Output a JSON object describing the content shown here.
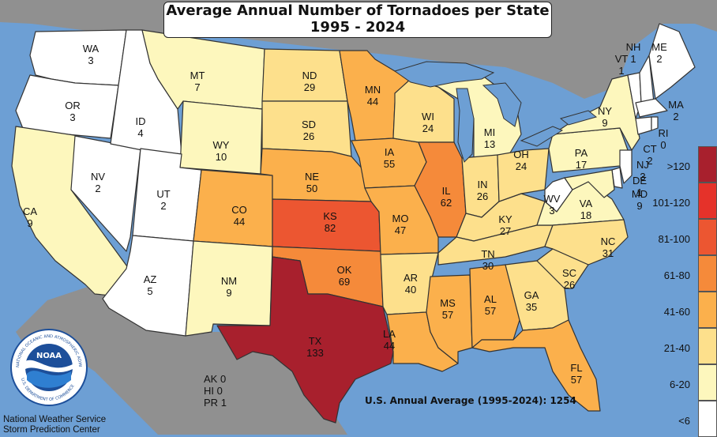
{
  "title": {
    "line1": "Average Annual Number of Tornadoes per State",
    "line2": "1995 - 2024"
  },
  "colors": {
    "lt6": "#ffffff",
    "b6_20": "#fdf7bd",
    "b21_40": "#fde08c",
    "b41_60": "#fbb04c",
    "b61_80": "#f58a3a",
    "b81_100": "#ec5631",
    "b101_120": "#e5322a",
    "gt120": "#a8202d",
    "water": "#6d9fd4",
    "land_other": "#909090",
    "border": "#333333"
  },
  "legend": [
    "<6",
    "6-20",
    "21-40",
    "41-60",
    "61-80",
    "81-100",
    "101-120",
    ">120"
  ],
  "states": [
    {
      "abbr": "WA",
      "value": "3"
    },
    {
      "abbr": "OR",
      "value": "3"
    },
    {
      "abbr": "CA",
      "value": "9"
    },
    {
      "abbr": "NV",
      "value": "2"
    },
    {
      "abbr": "ID",
      "value": "4"
    },
    {
      "abbr": "MT",
      "value": "7"
    },
    {
      "abbr": "WY",
      "value": "10"
    },
    {
      "abbr": "UT",
      "value": "2"
    },
    {
      "abbr": "AZ",
      "value": "5"
    },
    {
      "abbr": "CO",
      "value": "44"
    },
    {
      "abbr": "NM",
      "value": "9"
    },
    {
      "abbr": "ND",
      "value": "29"
    },
    {
      "abbr": "SD",
      "value": "26"
    },
    {
      "abbr": "NE",
      "value": "50"
    },
    {
      "abbr": "KS",
      "value": "82"
    },
    {
      "abbr": "OK",
      "value": "69"
    },
    {
      "abbr": "TX",
      "value": "133"
    },
    {
      "abbr": "MN",
      "value": "44"
    },
    {
      "abbr": "IA",
      "value": "55"
    },
    {
      "abbr": "MO",
      "value": "47"
    },
    {
      "abbr": "AR",
      "value": "40"
    },
    {
      "abbr": "LA",
      "value": "44"
    },
    {
      "abbr": "WI",
      "value": "24"
    },
    {
      "abbr": "IL",
      "value": "62"
    },
    {
      "abbr": "MS",
      "value": "57"
    },
    {
      "abbr": "MI",
      "value": "13"
    },
    {
      "abbr": "IN",
      "value": "26"
    },
    {
      "abbr": "KY",
      "value": "27"
    },
    {
      "abbr": "TN",
      "value": "30"
    },
    {
      "abbr": "AL",
      "value": "57"
    },
    {
      "abbr": "OH",
      "value": "24"
    },
    {
      "abbr": "GA",
      "value": "35"
    },
    {
      "abbr": "FL",
      "value": "57"
    },
    {
      "abbr": "WV",
      "value": "3"
    },
    {
      "abbr": "VA",
      "value": "18"
    },
    {
      "abbr": "NC",
      "value": "31"
    },
    {
      "abbr": "SC",
      "value": "26"
    },
    {
      "abbr": "PA",
      "value": "17"
    },
    {
      "abbr": "NY",
      "value": "9"
    },
    {
      "abbr": "VT",
      "value": "1"
    },
    {
      "abbr": "NH",
      "value": "1"
    },
    {
      "abbr": "ME",
      "value": "2"
    },
    {
      "abbr": "MA",
      "value": "2"
    },
    {
      "abbr": "RI",
      "value": "0"
    },
    {
      "abbr": "CT",
      "value": "2"
    },
    {
      "abbr": "NJ",
      "value": "3"
    },
    {
      "abbr": "DE",
      "value": "1"
    },
    {
      "abbr": "MD",
      "value": "9"
    }
  ],
  "territories": [
    {
      "name": "AK",
      "value": "0"
    },
    {
      "name": "HI",
      "value": "0"
    },
    {
      "name": "PR",
      "value": "1"
    }
  ],
  "us_average": "U.S. Annual Average (1995-2024): 1254",
  "credit": {
    "line1": "National Weather Service",
    "line2": "Storm Prediction Center"
  },
  "logo": {
    "text": "NOAA",
    "ring_text": "NATIONAL OCEANIC AND ATMOSPHERIC ADMINISTRATION",
    "ring_text_bottom": "U.S. DEPARTMENT OF COMMERCE"
  }
}
